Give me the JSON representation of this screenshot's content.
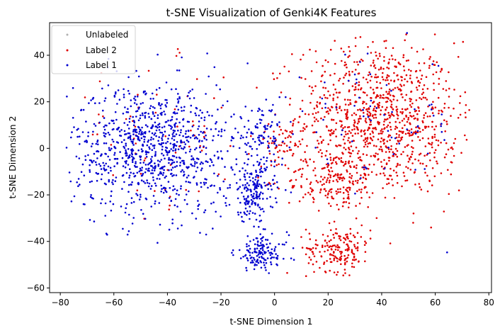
{
  "chart_data": {
    "type": "scatter",
    "title": "t-SNE Visualization of Genki4K Features",
    "xlabel": "t-SNE Dimension 1",
    "ylabel": "t-SNE Dimension 2",
    "xlim": [
      -84,
      81
    ],
    "ylim": [
      -62,
      54
    ],
    "xticks": [
      -80,
      -60,
      -40,
      -20,
      0,
      20,
      40,
      60,
      80
    ],
    "yticks": [
      -60,
      -40,
      -20,
      0,
      20,
      40
    ],
    "grid": false,
    "legend_position": "top-left",
    "series": [
      {
        "name": "Unlabeled",
        "color": "#b0b0b0",
        "count": 0,
        "clusters": []
      },
      {
        "name": "Label 2",
        "color": "#e00000",
        "count": 1500,
        "clusters": [
          {
            "cx": 38,
            "cy": 14,
            "sx": 15,
            "sy": 16,
            "weight": 0.62
          },
          {
            "cx": 22,
            "cy": -14,
            "sx": 9,
            "sy": 6,
            "weight": 0.12
          },
          {
            "cx": 24,
            "cy": -43,
            "sx": 6,
            "sy": 5,
            "weight": 0.12
          },
          {
            "cx": 2,
            "cy": 2,
            "sx": 4,
            "sy": 4,
            "weight": 0.03
          },
          {
            "cx": -40,
            "cy": 5,
            "sx": 20,
            "sy": 15,
            "weight": 0.05
          },
          {
            "cx": 52,
            "cy": 0,
            "sx": 12,
            "sy": 12,
            "weight": 0.06
          }
        ]
      },
      {
        "name": "Label 1",
        "color": "#0000d0",
        "count": 1450,
        "clusters": [
          {
            "cx": -45,
            "cy": 0,
            "sx": 15,
            "sy": 14,
            "weight": 0.66
          },
          {
            "cx": -8,
            "cy": -19,
            "sx": 4,
            "sy": 6,
            "weight": 0.12
          },
          {
            "cx": -5,
            "cy": -45,
            "sx": 5,
            "sy": 4,
            "weight": 0.1
          },
          {
            "cx": -5,
            "cy": 5,
            "sx": 5,
            "sy": 6,
            "weight": 0.07
          },
          {
            "cx": 38,
            "cy": 10,
            "sx": 16,
            "sy": 16,
            "weight": 0.05
          }
        ]
      }
    ]
  }
}
